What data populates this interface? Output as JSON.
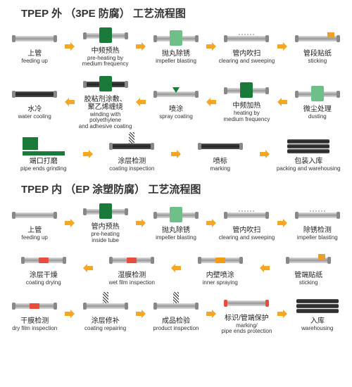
{
  "colors": {
    "arrow": "#f5a623",
    "green": "#1a7a3a",
    "lightgreen": "#6fc088",
    "red": "#e74c3c",
    "orange": "#f39c12",
    "pipe": "#aaaaaa",
    "dark": "#2a2a2a",
    "text": "#222222"
  },
  "section1": {
    "title": "TPEP 外 （3PE 防腐） 工艺流程图",
    "rows": [
      {
        "dir": "r",
        "steps": [
          {
            "zh": "上管",
            "en": "feeding up",
            "ico": "pipe"
          },
          {
            "zh": "中频预热",
            "en": "pre-heating by\nmedium frequency",
            "ico": "pipe-box"
          },
          {
            "zh": "抛丸除锈",
            "en": "impeller blasting",
            "ico": "pipe-box-lt"
          },
          {
            "zh": "管内吹扫",
            "en": "clearing and sweeping",
            "ico": "pipe-dots"
          },
          {
            "zh": "管段贴纸",
            "en": "sticking",
            "ico": "pipe-tag"
          }
        ]
      },
      {
        "dir": "l",
        "steps": [
          {
            "zh": "水冷",
            "en": "water cooling",
            "ico": "pipe-dk"
          },
          {
            "zh": "胶粘剂涂敷、\n聚乙烯缠绕",
            "en": "winding with polyethylene\nand adhesive coating",
            "ico": "pipe-dk-box"
          },
          {
            "zh": "喷涂",
            "en": "spray coating",
            "ico": "pipe-tri"
          },
          {
            "zh": "中频加热",
            "en": "heating by\nmedium frequency",
            "ico": "pipe-box"
          },
          {
            "zh": "微尘处理",
            "en": "dusting",
            "ico": "pipe-box-lt"
          }
        ]
      },
      {
        "dir": "r",
        "steps": [
          {
            "zh": "端口打磨",
            "en": "pipe ends grinding",
            "ico": "grinder"
          },
          {
            "zh": "涂层检测",
            "en": "coating inspection",
            "ico": "pipe-dk-spring"
          },
          {
            "zh": "喷标",
            "en": "marking",
            "ico": "pipe-dk"
          },
          {
            "zh": "包装入库",
            "en": "packing and warehousing",
            "ico": "stack"
          }
        ]
      }
    ]
  },
  "section2": {
    "title": "TPEP 内 （EP 涂塑防腐） 工艺流程图",
    "rows": [
      {
        "dir": "r",
        "steps": [
          {
            "zh": "上管",
            "en": "feeding up",
            "ico": "pipe"
          },
          {
            "zh": "管内预热",
            "en": "pre-heating\ninside tube",
            "ico": "pipe-box"
          },
          {
            "zh": "抛丸除锈",
            "en": "impeller blasting",
            "ico": "pipe-box-lt"
          },
          {
            "zh": "管内吹扫",
            "en": "clearing and sweeping",
            "ico": "pipe-dots"
          },
          {
            "zh": "除锈检测",
            "en": "impeller blasting",
            "ico": "pipe-dots"
          }
        ]
      },
      {
        "dir": "l",
        "steps": [
          {
            "zh": "涂层干燥",
            "en": "coating drying",
            "ico": "pipe-band-r"
          },
          {
            "zh": "湿膜检测",
            "en": "wet film inspection",
            "ico": "pipe-band-r"
          },
          {
            "zh": "内壁喷涂",
            "en": "inner spraying",
            "ico": "pipe-band-o"
          },
          {
            "zh": "管端贴纸",
            "en": "sticking",
            "ico": "pipe-tag"
          }
        ]
      },
      {
        "dir": "r",
        "steps": [
          {
            "zh": "干膜检测",
            "en": "dry film inspection",
            "ico": "pipe-band-r"
          },
          {
            "zh": "涂层修补",
            "en": "coating repairing",
            "ico": "pipe-spring"
          },
          {
            "zh": "成品检验",
            "en": "product inspection",
            "ico": "pipe-spring"
          },
          {
            "zh": "标识/管端保护",
            "en": "marking/\npipe ends protection",
            "ico": "pipe-caps"
          },
          {
            "zh": "入库",
            "en": "warehousing",
            "ico": "stack"
          }
        ]
      }
    ]
  }
}
